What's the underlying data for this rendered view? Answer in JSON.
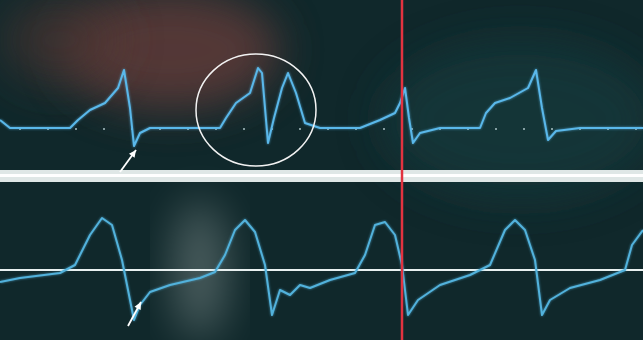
{
  "chart_data": [
    {
      "type": "line",
      "x": [
        0,
        10,
        70,
        78,
        90,
        105,
        118,
        124,
        130,
        134,
        140,
        150,
        220,
        226,
        236,
        250,
        258,
        262,
        268,
        274,
        282,
        288,
        296,
        305,
        320,
        340,
        360,
        380,
        395,
        400,
        405,
        409,
        413,
        420,
        440,
        480,
        486,
        495,
        510,
        528,
        536,
        542,
        548,
        556,
        580,
        643
      ],
      "values": [
        8,
        0,
        0,
        8,
        18,
        25,
        40,
        58,
        20,
        -18,
        -5,
        0,
        0,
        10,
        25,
        35,
        60,
        55,
        -15,
        10,
        40,
        55,
        35,
        5,
        0,
        0,
        0,
        8,
        15,
        25,
        40,
        10,
        -15,
        -5,
        0,
        0,
        15,
        25,
        30,
        40,
        58,
        20,
        -12,
        -3,
        0,
        0
      ],
      "xlim": [
        0,
        643
      ],
      "ylim": [
        -40,
        110
      ],
      "color": "#5ab8ea",
      "tick_labels": false
    },
    {
      "type": "line",
      "x": [
        0,
        20,
        60,
        75,
        90,
        102,
        112,
        122,
        128,
        134,
        140,
        150,
        170,
        200,
        215,
        225,
        235,
        245,
        255,
        265,
        272,
        280,
        290,
        300,
        310,
        330,
        355,
        365,
        375,
        385,
        395,
        402,
        408,
        418,
        440,
        470,
        490,
        505,
        515,
        525,
        535,
        542,
        550,
        570,
        600,
        625,
        632,
        643
      ],
      "values": [
        -12,
        -8,
        -3,
        5,
        35,
        52,
        45,
        10,
        -20,
        -50,
        -35,
        -22,
        -15,
        -8,
        -2,
        15,
        40,
        50,
        38,
        5,
        -45,
        -20,
        -25,
        -15,
        -18,
        -10,
        -3,
        15,
        45,
        48,
        35,
        5,
        -45,
        -30,
        -15,
        -5,
        5,
        40,
        50,
        40,
        10,
        -45,
        -30,
        -18,
        -10,
        0,
        25,
        40
      ],
      "xlim": [
        0,
        643
      ],
      "ylim": [
        -65,
        85
      ],
      "color": "#52b2dc",
      "tick_labels": false
    }
  ]
}
